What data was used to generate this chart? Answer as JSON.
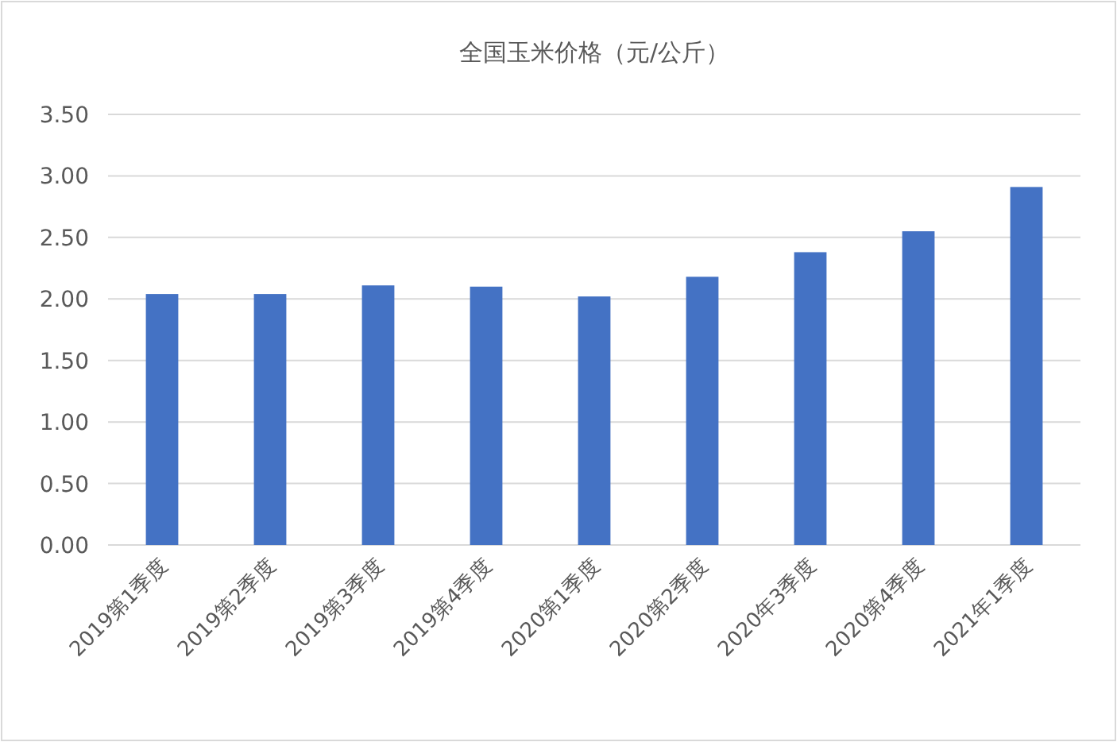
{
  "chart_data": {
    "type": "bar",
    "title": "全国玉米价格（元/公斤）",
    "categories": [
      "2019第1季度",
      "2019第2季度",
      "2019第3季度",
      "2019第4季度",
      "2020第1季度",
      "2020第2季度",
      "2020年3季度",
      "2020第4季度",
      "2021年1季度"
    ],
    "values": [
      2.04,
      2.04,
      2.11,
      2.1,
      2.02,
      2.18,
      2.38,
      2.55,
      2.91
    ],
    "color": "#4472c4",
    "ylim": [
      0,
      3.5
    ],
    "yticks": [
      {
        "value": 0,
        "label": "0.00"
      },
      {
        "value": 0.5,
        "label": "0.50"
      },
      {
        "value": 1,
        "label": "1.00"
      },
      {
        "value": 1.5,
        "label": "1.50"
      },
      {
        "value": 2,
        "label": "2.00"
      },
      {
        "value": 2.5,
        "label": "2.50"
      },
      {
        "value": 3,
        "label": "3.00"
      },
      {
        "value": 3.5,
        "label": "3.50"
      }
    ],
    "grid": "y"
  }
}
